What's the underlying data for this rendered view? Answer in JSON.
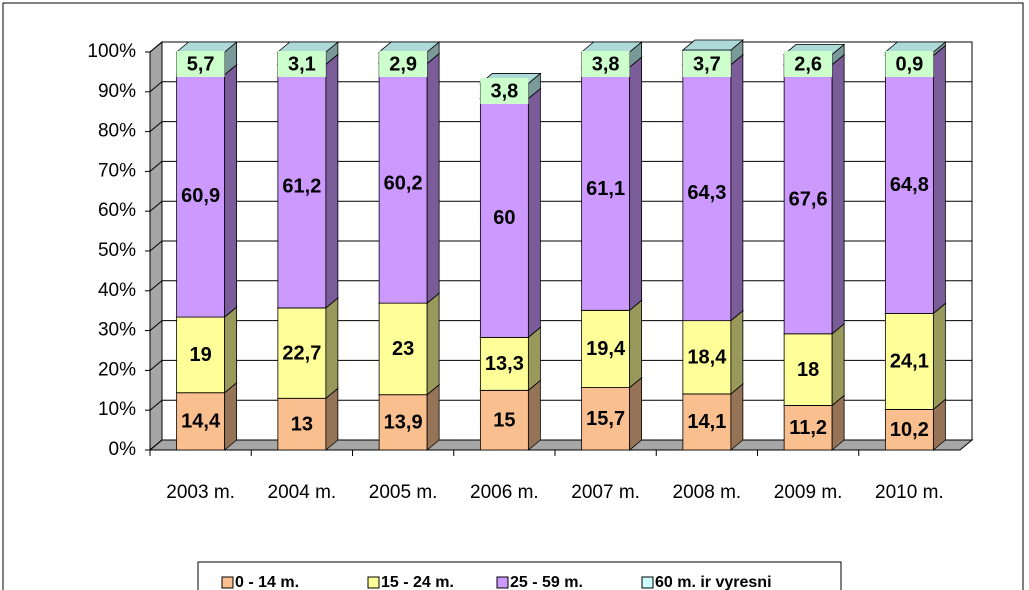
{
  "chart_data": {
    "type": "stacked_bar_3d",
    "categories": [
      "2003 m.",
      "2004 m.",
      "2005 m.",
      "2006 m.",
      "2007 m.",
      "2008 m.",
      "2009 m.",
      "2010 m."
    ],
    "series": [
      {
        "name": "0 - 14 m.",
        "color": "#f9bf8f",
        "values": [
          14.4,
          13,
          13.9,
          15,
          15.7,
          14.1,
          11.2,
          10.2
        ],
        "value_labels": [
          "14,4",
          "13",
          "13,9",
          "15",
          "15,7",
          "14,1",
          "11,2",
          "10,2"
        ]
      },
      {
        "name": "15 - 24 m.",
        "color": "#ffff99",
        "values": [
          19,
          22.7,
          23,
          13.3,
          19.4,
          18.4,
          18,
          24.1
        ],
        "value_labels": [
          "19",
          "22,7",
          "23",
          "13,3",
          "19,4",
          "18,4",
          "18",
          "24,1"
        ]
      },
      {
        "name": "25 - 59 m.",
        "color": "#cc99ff",
        "values": [
          60.9,
          61.2,
          60.2,
          60,
          61.1,
          64.3,
          67.6,
          64.8
        ],
        "value_labels": [
          "60,9",
          "61,2",
          "60,2",
          "60",
          "61,1",
          "64,3",
          "67,6",
          "64,8"
        ]
      },
      {
        "name": "60 m. ir vyresni",
        "color": "#ccffff",
        "values": [
          5.7,
          3.1,
          2.9,
          3.8,
          3.8,
          3.7,
          2.6,
          0.9
        ],
        "value_labels": [
          "5,7",
          "3,1",
          "2,9",
          "3,8",
          "3,8",
          "3,7",
          "2,6",
          "0,9"
        ]
      }
    ],
    "ylim": [
      0,
      100
    ],
    "yticks": [
      {
        "value": 0,
        "label": "0%"
      },
      {
        "value": 10,
        "label": "10%"
      },
      {
        "value": 20,
        "label": "20%"
      },
      {
        "value": 30,
        "label": "30%"
      },
      {
        "value": 40,
        "label": "40%"
      },
      {
        "value": 50,
        "label": "50%"
      },
      {
        "value": 60,
        "label": "60%"
      },
      {
        "value": 70,
        "label": "70%"
      },
      {
        "value": 80,
        "label": "80%"
      },
      {
        "value": 90,
        "label": "90%"
      },
      {
        "value": 100,
        "label": "100%"
      }
    ],
    "grid": true,
    "legend": "bottom"
  }
}
